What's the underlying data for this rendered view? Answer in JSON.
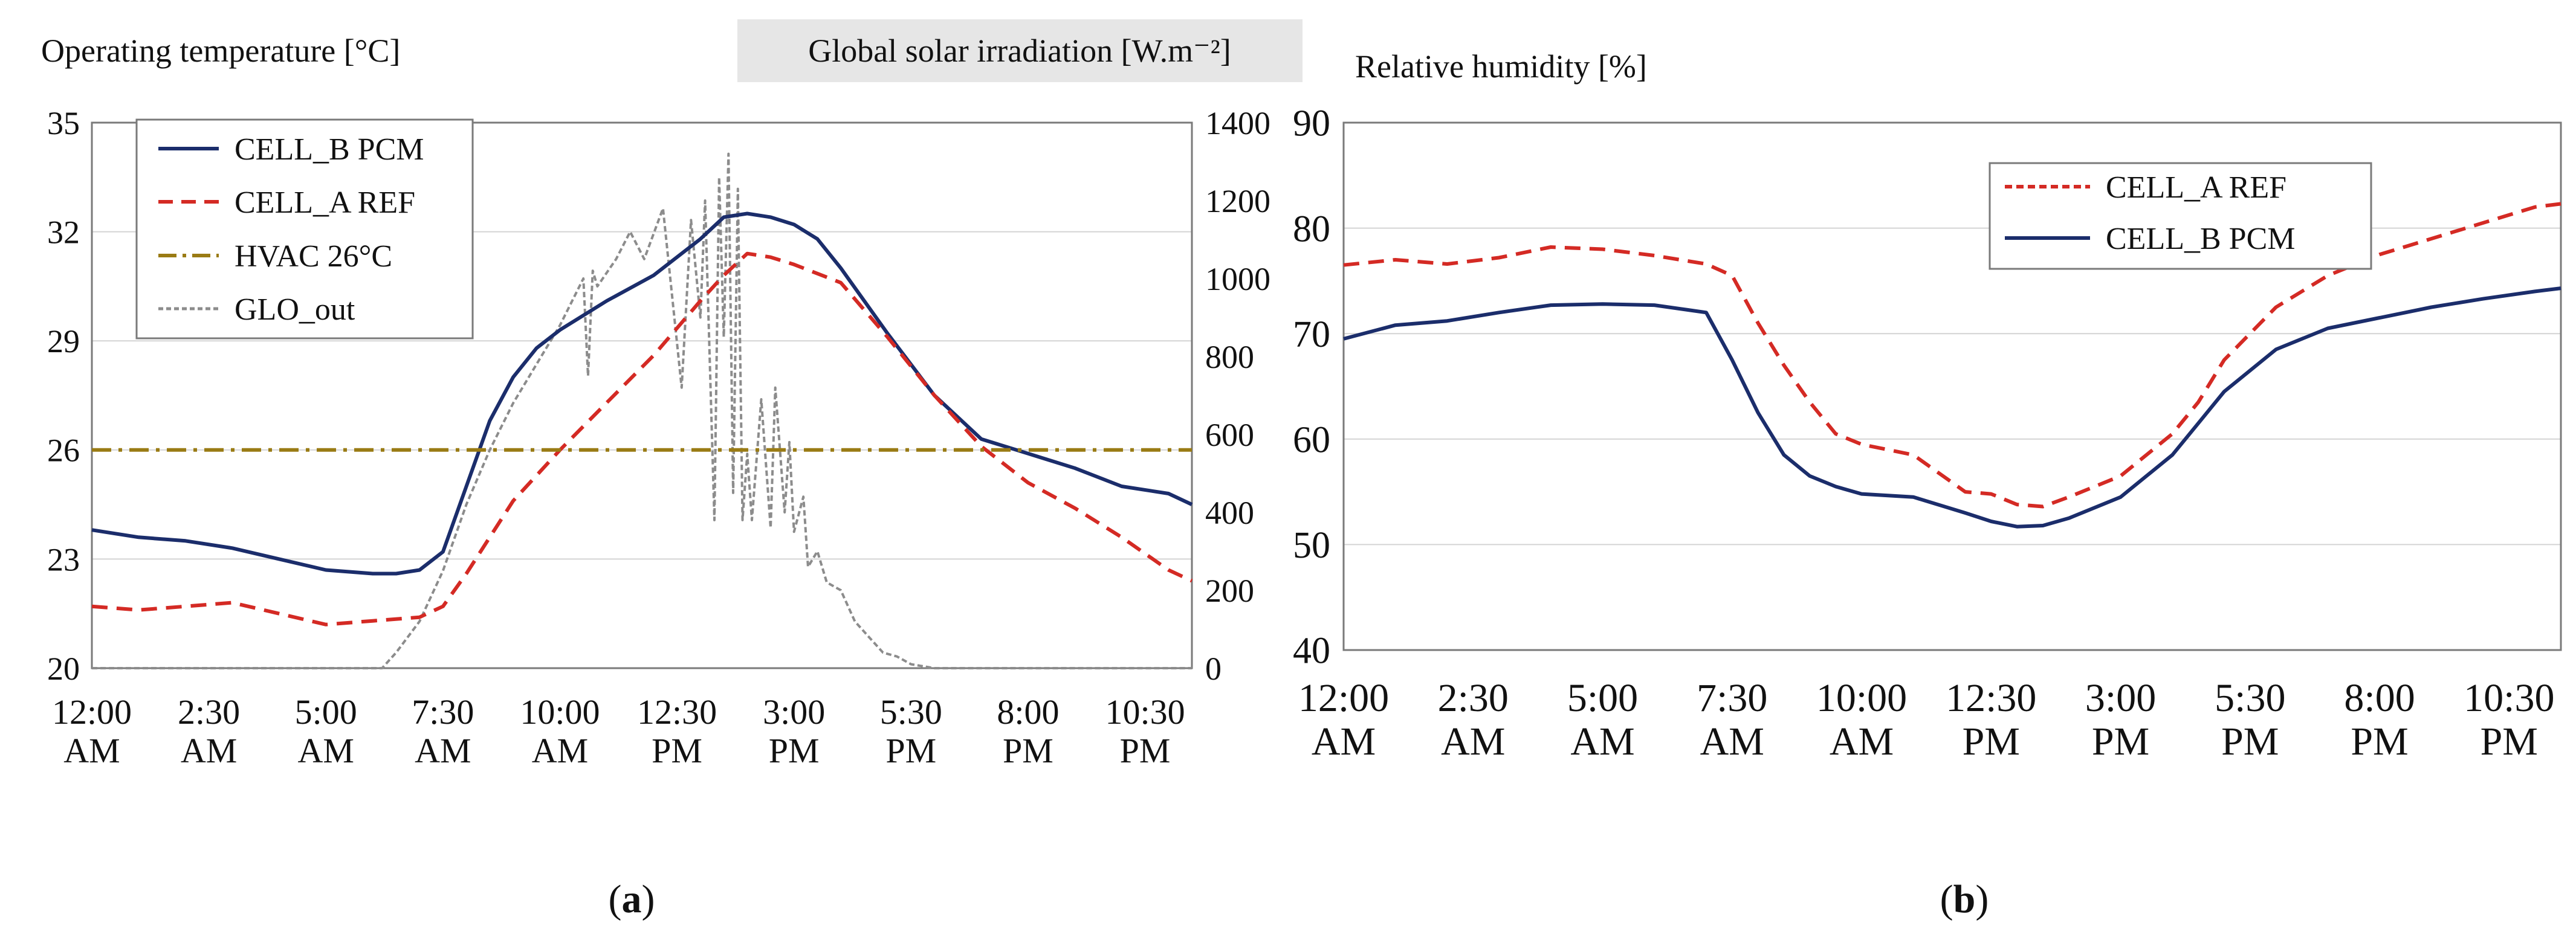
{
  "chart_data": [
    {
      "panel": "a",
      "type": "line",
      "caption": "(a)",
      "ylabel": "Operating temperature [°C]",
      "y2label": "Global solar irradiation [W.m⁻²]",
      "ylim": [
        20,
        35
      ],
      "yticks": [
        "20",
        "23",
        "26",
        "29",
        "32",
        "35"
      ],
      "y2lim": [
        0,
        1400
      ],
      "y2ticks": [
        "0",
        "200",
        "400",
        "600",
        "800",
        "1000",
        "1200",
        "1400"
      ],
      "xlim": [
        0,
        23.5
      ],
      "xticks": [
        {
          "l1": "12:00",
          "l2": "AM"
        },
        {
          "l1": "2:30",
          "l2": "AM"
        },
        {
          "l1": "5:00",
          "l2": "AM"
        },
        {
          "l1": "7:30",
          "l2": "AM"
        },
        {
          "l1": "10:00",
          "l2": "AM"
        },
        {
          "l1": "12:30",
          "l2": "PM"
        },
        {
          "l1": "3:00",
          "l2": "PM"
        },
        {
          "l1": "5:30",
          "l2": "PM"
        },
        {
          "l1": "8:00",
          "l2": "PM"
        },
        {
          "l1": "10:30",
          "l2": "PM"
        }
      ],
      "legend": [
        "CELL_B PCM",
        "CELL_A REF",
        "HVAC 26°C",
        "GLO_out"
      ],
      "series": [
        {
          "name": "CELL_B PCM",
          "axis": "left",
          "color": "#1b2d6b",
          "dash": "solid",
          "x": [
            0,
            1,
            2,
            3,
            4,
            5,
            6,
            6.5,
            7,
            7.5,
            8,
            8.5,
            9,
            9.5,
            10,
            11,
            12,
            13,
            13.5,
            14,
            14.5,
            15,
            15.5,
            16,
            17,
            18,
            19,
            20,
            21,
            22,
            23,
            23.5
          ],
          "y": [
            23.8,
            23.6,
            23.5,
            23.3,
            23.0,
            22.7,
            22.6,
            22.6,
            22.7,
            23.2,
            25.0,
            26.8,
            28.0,
            28.8,
            29.3,
            30.1,
            30.8,
            31.8,
            32.4,
            32.5,
            32.4,
            32.2,
            31.8,
            31.0,
            29.2,
            27.5,
            26.3,
            25.9,
            25.5,
            25.0,
            24.8,
            24.5
          ]
        },
        {
          "name": "CELL_A REF",
          "axis": "left",
          "color": "#d42a24",
          "dash": "dashed",
          "x": [
            0,
            1,
            2,
            3,
            4,
            5,
            6,
            7,
            7.5,
            8,
            8.5,
            9,
            10,
            11,
            12,
            13,
            13.5,
            14,
            14.5,
            15,
            16,
            17,
            18,
            19,
            20,
            21,
            22,
            23,
            23.5
          ],
          "y": [
            21.7,
            21.6,
            21.7,
            21.8,
            21.5,
            21.2,
            21.3,
            21.4,
            21.7,
            22.6,
            23.6,
            24.6,
            26.0,
            27.3,
            28.6,
            30.1,
            30.8,
            31.4,
            31.3,
            31.1,
            30.6,
            29.1,
            27.5,
            26.1,
            25.1,
            24.4,
            23.6,
            22.7,
            22.4
          ]
        },
        {
          "name": "HVAC 26°C",
          "axis": "left",
          "color": "#9a7b14",
          "dash": "dashdot",
          "x": [
            0,
            23.5
          ],
          "y": [
            26,
            26
          ]
        },
        {
          "name": "GLO_out",
          "axis": "right",
          "color": "#8c8c8c",
          "dash": "dotted",
          "x": [
            0,
            6.2,
            6.5,
            7,
            7.5,
            8,
            8.5,
            9,
            9.5,
            10,
            10.5,
            10.6,
            10.7,
            10.8,
            11.2,
            11.5,
            11.8,
            12.2,
            12.6,
            12.8,
            13.0,
            13.1,
            13.3,
            13.4,
            13.5,
            13.6,
            13.7,
            13.8,
            13.9,
            14.0,
            14.1,
            14.3,
            14.5,
            14.6,
            14.8,
            14.9,
            15.0,
            15.2,
            15.3,
            15.5,
            15.7,
            16.0,
            16.3,
            16.6,
            16.9,
            17.2,
            17.5,
            18,
            23.5
          ],
          "y": [
            0,
            0,
            40,
            120,
            250,
            420,
            560,
            680,
            780,
            880,
            1000,
            750,
            1020,
            980,
            1050,
            1120,
            1050,
            1180,
            720,
            1150,
            900,
            1200,
            380,
            1260,
            850,
            1320,
            450,
            1230,
            380,
            550,
            380,
            690,
            360,
            720,
            400,
            580,
            350,
            440,
            260,
            300,
            220,
            200,
            120,
            80,
            40,
            30,
            10,
            0,
            0
          ]
        }
      ]
    },
    {
      "panel": "b",
      "type": "line",
      "caption": "(b)",
      "ylabel": "Relative humidity [%]",
      "ylim": [
        40,
        90
      ],
      "yticks": [
        "40",
        "50",
        "60",
        "70",
        "80",
        "90"
      ],
      "xlim": [
        0,
        23.5
      ],
      "xticks": [
        {
          "l1": "12:00",
          "l2": "AM"
        },
        {
          "l1": "2:30",
          "l2": "AM"
        },
        {
          "l1": "5:00",
          "l2": "AM"
        },
        {
          "l1": "7:30",
          "l2": "AM"
        },
        {
          "l1": "10:00",
          "l2": "AM"
        },
        {
          "l1": "12:30",
          "l2": "PM"
        },
        {
          "l1": "3:00",
          "l2": "PM"
        },
        {
          "l1": "5:30",
          "l2": "PM"
        },
        {
          "l1": "8:00",
          "l2": "PM"
        },
        {
          "l1": "10:30",
          "l2": "PM"
        }
      ],
      "legend": [
        "CELL_A REF",
        "CELL_B PCM"
      ],
      "series": [
        {
          "name": "CELL_A REF",
          "color": "#d42a24",
          "dash": "dashed",
          "x": [
            0,
            1,
            2,
            3,
            4,
            5,
            6,
            7,
            7.5,
            8,
            8.5,
            9,
            9.5,
            10,
            11,
            12,
            12.5,
            13,
            13.5,
            14,
            15,
            16,
            16.5,
            17,
            18,
            19,
            20,
            21,
            22,
            23,
            23.5
          ],
          "y": [
            76.5,
            77.0,
            76.6,
            77.2,
            78.2,
            78.0,
            77.4,
            76.6,
            75.5,
            71.0,
            67.0,
            63.5,
            60.5,
            59.5,
            58.5,
            55.0,
            54.8,
            53.8,
            53.6,
            54.5,
            56.5,
            60.5,
            63.5,
            67.5,
            72.5,
            75.5,
            77.5,
            79.0,
            80.5,
            82.0,
            82.3
          ]
        },
        {
          "name": "CELL_B PCM",
          "color": "#1b2d6b",
          "dash": "solid",
          "x": [
            0,
            1,
            2,
            3,
            4,
            5,
            6,
            7,
            7.5,
            8,
            8.5,
            9,
            9.5,
            10,
            11,
            12,
            12.5,
            13,
            13.5,
            14,
            15,
            16,
            16.5,
            17,
            18,
            19,
            20,
            21,
            22,
            23,
            23.5
          ],
          "y": [
            69.5,
            70.8,
            71.2,
            72.0,
            72.7,
            72.8,
            72.7,
            72.0,
            67.5,
            62.5,
            58.5,
            56.5,
            55.5,
            54.8,
            54.5,
            53.0,
            52.2,
            51.7,
            51.8,
            52.5,
            54.5,
            58.5,
            61.5,
            64.5,
            68.5,
            70.5,
            71.5,
            72.5,
            73.3,
            74.0,
            74.3
          ]
        }
      ]
    }
  ]
}
